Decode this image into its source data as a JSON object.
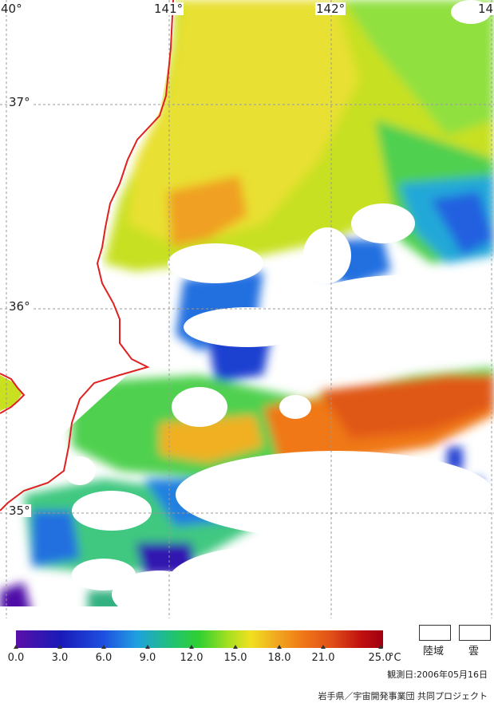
{
  "map": {
    "longitude_labels": [
      "40°",
      "141°",
      "142°",
      "14"
    ],
    "latitude_labels": [
      "37°",
      "36°",
      "35°"
    ],
    "colors": {
      "coastline": "#e02020",
      "gridline": "#999999",
      "cloud_and_land_mask": "#ffffff"
    }
  },
  "legend": {
    "title_unit": "°C",
    "ticks": [
      "0.0",
      "3.0",
      "6.0",
      "9.0",
      "12.0",
      "15.0",
      "18.0",
      "21.0",
      "25.0"
    ],
    "range": [
      0,
      25
    ],
    "land_label": "陸域",
    "cloud_label": "雲"
  },
  "footer": {
    "observation_date": "観測日:2006年05月16日",
    "credit": "岩手県／宇宙開発事業団  共同プロジェクト"
  }
}
